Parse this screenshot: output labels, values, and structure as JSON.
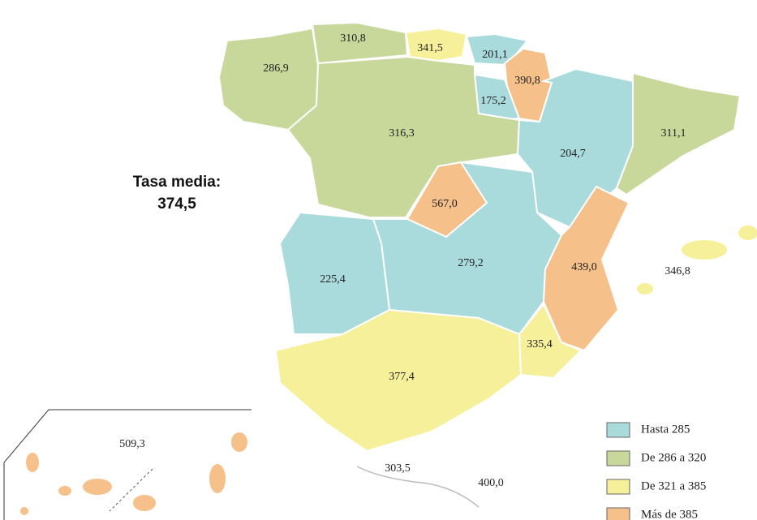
{
  "title": [
    "Tasa media:",
    "374,5"
  ],
  "regions": [
    {
      "label": "286,9",
      "color": "#c8d89a"
    },
    {
      "label": "310,8",
      "color": "#c8d89a"
    },
    {
      "label": "341,5",
      "color": "#f7f09a"
    },
    {
      "label": "201,1",
      "color": "#a9dadc"
    },
    {
      "label": "390,8",
      "color": "#f5c08a"
    },
    {
      "label": "175,2",
      "color": "#a9dadc"
    },
    {
      "label": "316,3",
      "color": "#c8d89a"
    },
    {
      "label": "204,7",
      "color": "#a9dadc"
    },
    {
      "label": "311,1",
      "color": "#c8d89a"
    },
    {
      "label": "567,0",
      "color": "#f5c08a"
    },
    {
      "label": "279,2",
      "color": "#a9dadc"
    },
    {
      "label": "225,4",
      "color": "#a9dadc"
    },
    {
      "label": "439,0",
      "color": "#f5c08a"
    },
    {
      "label": "335,4",
      "color": "#f7f09a"
    },
    {
      "label": "377,4",
      "color": "#f7f09a"
    },
    {
      "label": "346,8",
      "color": "#f7f09a"
    },
    {
      "label": "509,3",
      "color": "#f5c08a"
    },
    {
      "label": "303,5",
      "color": "#ffffff"
    },
    {
      "label": "400,0",
      "color": "#ffffff"
    }
  ],
  "legend": [
    {
      "label": "Hasta 285",
      "color": "#a9dadc"
    },
    {
      "label": "De 286 a 320",
      "color": "#c8d89a"
    },
    {
      "label": "De 321 a 385",
      "color": "#f7f09a"
    },
    {
      "label": "Más de 385",
      "color": "#f5c08a"
    }
  ]
}
